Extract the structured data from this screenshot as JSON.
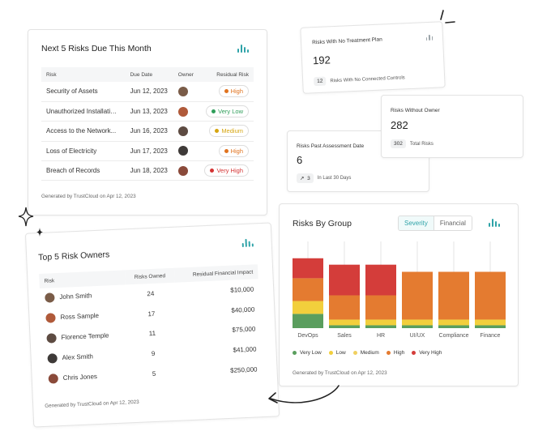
{
  "risks_due": {
    "title": "Next 5 Risks Due This Month",
    "columns": [
      "Risk",
      "Due Date",
      "Owner",
      "Residual Risk"
    ],
    "rows": [
      {
        "risk": "Security of Assets",
        "due": "Jun 12, 2023",
        "level": "High",
        "level_color": "#e0731f"
      },
      {
        "risk": "Unauthorized Installation...",
        "due": "Jun 13, 2023",
        "level": "Very Low",
        "level_color": "#2f9e5a"
      },
      {
        "risk": "Access to the Network...",
        "due": "Jun 16, 2023",
        "level": "Medium",
        "level_color": "#d6a510"
      },
      {
        "risk": "Loss of Electricity",
        "due": "Jun 17, 2023",
        "level": "High",
        "level_color": "#e0731f"
      },
      {
        "risk": "Breach of Records",
        "due": "Jun 18, 2023",
        "level": "Very High",
        "level_color": "#d43434"
      }
    ],
    "footer": "Generated by TrustCloud on Apr 12, 2023"
  },
  "no_treatment": {
    "label": "Risks With No Treatment Plan",
    "value": "192",
    "chip": "12",
    "sub": "Risks With No Connected Controls"
  },
  "without_owner": {
    "label": "Risks Without Owner",
    "value": "282",
    "chip": "302",
    "sub": "Total Risks"
  },
  "past_assessment": {
    "label": "Risks Past Assessment Date",
    "value": "6",
    "chip": "3",
    "sub": "In Last 30 Days"
  },
  "risk_owners": {
    "title": "Top 5 Risk Owners",
    "columns": [
      "Risk",
      "Risks Owned",
      "Residual Financial Impact"
    ],
    "rows": [
      {
        "name": "John Smith",
        "owned": "24",
        "impact": "$10,000"
      },
      {
        "name": "Ross Sample",
        "owned": "17",
        "impact": "$40,000"
      },
      {
        "name": "Florence Temple",
        "owned": "11",
        "impact": "$75,000"
      },
      {
        "name": "Alex Smith",
        "owned": "9",
        "impact": "$41,000"
      },
      {
        "name": "Chris Jones",
        "owned": "5",
        "impact": "$250,000"
      }
    ],
    "footer": "Generated by TrustCloud on Apr 12, 2023"
  },
  "risks_by_group": {
    "title": "Risks By Group",
    "tabs": [
      "Severity",
      "Financial"
    ],
    "active_tab": "Severity",
    "footer": "Generated by TrustCloud on Apr 12, 2023"
  },
  "colors": {
    "very_low": "#5a9e5e",
    "low": "#f2cf3c",
    "medium": "#f0d060",
    "high": "#e47b30",
    "very_high": "#d43d3a",
    "accent": "#2fa3a8"
  },
  "chart_data": {
    "type": "bar",
    "stacked": true,
    "categories": [
      "DevOps",
      "Sales",
      "HR",
      "UI/UX",
      "Compliance",
      "Finance"
    ],
    "series": [
      {
        "name": "Very Low",
        "color": "#5a9e5e",
        "values": [
          2,
          0.4,
          0.4,
          0.4,
          0.4,
          0.4
        ]
      },
      {
        "name": "Low",
        "color": "#f2cf3c",
        "values": [
          1.8,
          0.8,
          0.8,
          0.8,
          0.8,
          0.8
        ]
      },
      {
        "name": "Medium",
        "color": "#f0d060",
        "values": [
          0,
          0,
          0,
          0,
          0,
          0
        ]
      },
      {
        "name": "High",
        "color": "#e47b30",
        "values": [
          3.2,
          3.4,
          3.4,
          6.7,
          6.7,
          6.7
        ]
      },
      {
        "name": "Very High",
        "color": "#d43d3a",
        "values": [
          2.8,
          4.3,
          4.3,
          0,
          0,
          0
        ]
      }
    ],
    "ylim": [
      0,
      10
    ]
  }
}
